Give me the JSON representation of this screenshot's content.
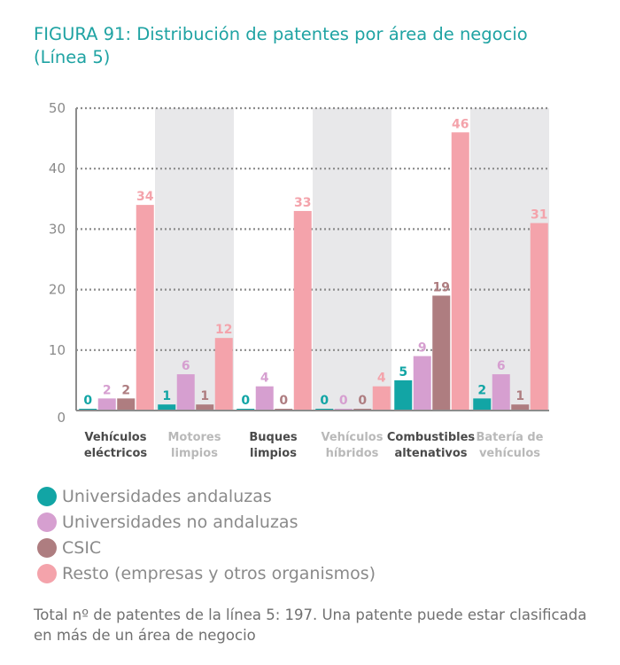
{
  "title_line1": "FIGURA 91: Distribución de patentes por área de negocio",
  "title_line2": "(Línea 5)",
  "chart_data": {
    "type": "bar",
    "title": "FIGURA 91: Distribución de patentes por área de negocio (Línea 5)",
    "categories": [
      [
        "Vehículos",
        "eléctricos"
      ],
      [
        "Motores",
        "limpios"
      ],
      [
        "Buques",
        "limpios"
      ],
      [
        "Vehículos",
        "híbridos"
      ],
      [
        "Combustibles",
        "altenativos"
      ],
      [
        "Batería de",
        "vehículos"
      ]
    ],
    "category_styles": [
      "dark",
      "light",
      "dark",
      "light",
      "dark",
      "light"
    ],
    "series": [
      {
        "name": "Universidades andaluzas",
        "color": "#12a5a5",
        "values": [
          0,
          1,
          0,
          0,
          5,
          2
        ]
      },
      {
        "name": "Universidades no andaluzas",
        "color": "#d69fd0",
        "values": [
          2,
          6,
          4,
          0,
          9,
          6
        ]
      },
      {
        "name": "CSIC",
        "color": "#ae7d80",
        "values": [
          2,
          1,
          0,
          0,
          19,
          1
        ]
      },
      {
        "name": "Resto (empresas y otros organismos)",
        "color": "#f4a3ab",
        "values": [
          34,
          12,
          33,
          4,
          46,
          31
        ]
      }
    ],
    "y_ticks": [
      0,
      10,
      20,
      30,
      40,
      50
    ],
    "ylim": [
      0,
      50
    ],
    "xlabel": "",
    "ylabel": "",
    "grid": true,
    "legend_position": "bottom"
  },
  "note": "Total nº de patentes de la línea 5: 197. Una patente puede estar clasificada en más de un área de negocio",
  "colors": {
    "title": "#1fa3a3",
    "axis_text": "#8a8a8a",
    "band": "#e8e8ea",
    "grid": "#8c8c8c",
    "category_dark": "#4a4a4a",
    "category_light": "#b9b9b9"
  }
}
